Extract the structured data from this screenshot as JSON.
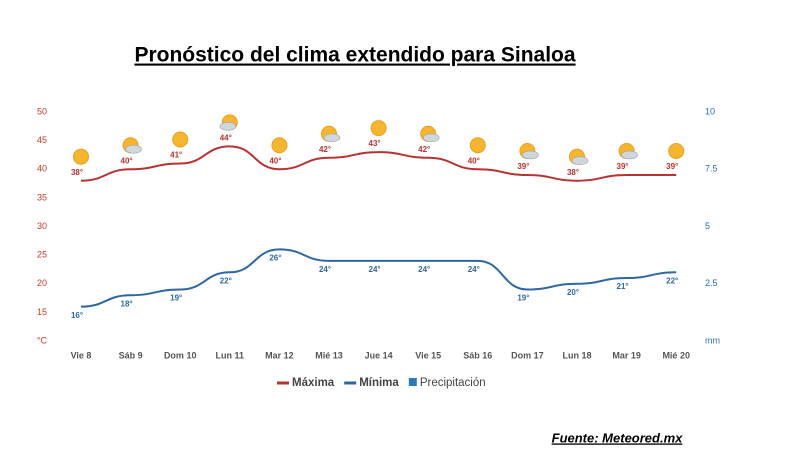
{
  "chart_data": {
    "type": "line",
    "title": "Pronóstico del clima extendido para Sinaloa",
    "source": "Fuente: Meteored.mx",
    "categories": [
      "Vie 8",
      "Sáb 9",
      "Dom 10",
      "Lun 11",
      "Mar 12",
      "Mié 13",
      "Jue 14",
      "Vie 15",
      "Sáb 16",
      "Dom 17",
      "Lun 18",
      "Mar 19",
      "Mié 20"
    ],
    "series": [
      {
        "name": "Máxima",
        "color": "#b83232",
        "values": [
          38,
          40,
          41,
          44,
          40,
          42,
          43,
          42,
          40,
          39,
          38,
          39,
          39
        ],
        "value_labels": [
          "38°",
          "40°",
          "41°",
          "44°",
          "40°",
          "42°",
          "43°",
          "42°",
          "40°",
          "39°",
          "38°",
          "39°",
          "39°"
        ]
      },
      {
        "name": "Mínima",
        "color": "#2f67a0",
        "values": [
          16,
          18,
          19,
          22,
          26,
          24,
          24,
          24,
          24,
          19,
          20,
          21,
          22
        ],
        "value_labels": [
          "16°",
          "18°",
          "19°",
          "22°",
          "26°",
          "24°",
          "24°",
          "24°",
          "24°",
          "19°",
          "20°",
          "21°",
          "22°"
        ]
      },
      {
        "name": "Precipitación",
        "color": "#2a7ab8",
        "axis": "y2",
        "values": [
          null,
          null,
          null,
          null,
          null,
          null,
          null,
          null,
          null,
          null,
          null,
          null,
          null
        ]
      }
    ],
    "ylim": [
      10,
      50
    ],
    "yticks": [
      {
        "value": 10,
        "label": "°C"
      },
      15,
      20,
      25,
      30,
      35,
      40,
      45,
      50
    ],
    "y2lim": [
      0,
      10
    ],
    "y2ticks": [
      {
        "value": 0,
        "label": "mm"
      },
      2.5,
      5,
      7.5,
      10
    ],
    "grid": false
  }
}
